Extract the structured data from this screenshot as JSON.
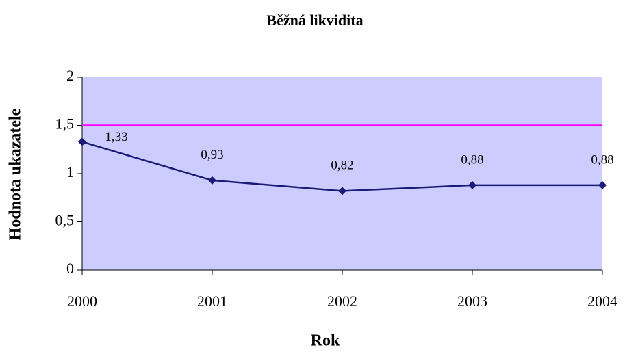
{
  "chart_data": {
    "type": "line",
    "title": "Běžná likvidita",
    "xlabel": "Rok",
    "ylabel": "Hodnota ukazatele",
    "categories": [
      "2000",
      "2001",
      "2002",
      "2003",
      "2004"
    ],
    "series": [
      {
        "name": null,
        "color": "#1c1c78",
        "values": [
          1.33,
          0.93,
          0.82,
          0.88,
          0.88
        ],
        "value_labels": [
          "1,33",
          "0,93",
          "0,82",
          "0,88",
          "0,88"
        ]
      }
    ],
    "reference_line": {
      "value": 1.5,
      "color": "#ff00ff"
    },
    "ylim": [
      0,
      2
    ],
    "yticks": [
      0,
      {
        "value": 0.5,
        "label": "0,5"
      },
      1,
      {
        "value": 1.5,
        "label": "1,5"
      },
      2
    ],
    "plot_background": "#ccccff"
  }
}
